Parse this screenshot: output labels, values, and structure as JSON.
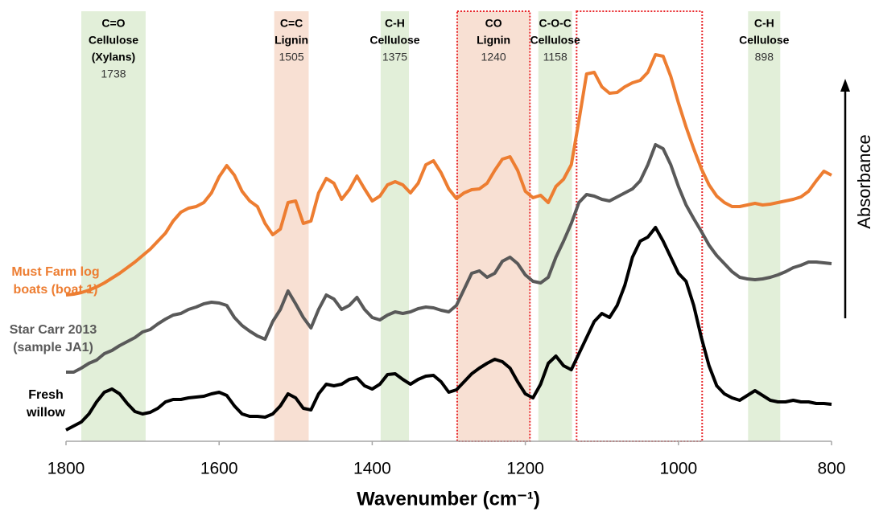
{
  "chart_data": {
    "type": "line",
    "xlabel": "Wavenumber (cm⁻¹)",
    "ylabel": "Absorbance",
    "xlim": [
      1800,
      800
    ],
    "xticks": [
      1800,
      1600,
      1400,
      1200,
      1000,
      800
    ],
    "ylim": [
      0,
      535
    ],
    "x": [
      1800,
      1790,
      1780,
      1770,
      1760,
      1750,
      1740,
      1730,
      1720,
      1710,
      1700,
      1690,
      1680,
      1670,
      1660,
      1650,
      1640,
      1630,
      1620,
      1610,
      1600,
      1590,
      1580,
      1570,
      1560,
      1550,
      1540,
      1530,
      1520,
      1510,
      1500,
      1490,
      1480,
      1470,
      1460,
      1450,
      1440,
      1430,
      1420,
      1410,
      1400,
      1390,
      1380,
      1370,
      1360,
      1350,
      1340,
      1330,
      1320,
      1310,
      1300,
      1290,
      1280,
      1270,
      1260,
      1250,
      1240,
      1230,
      1220,
      1210,
      1200,
      1190,
      1180,
      1170,
      1160,
      1150,
      1140,
      1130,
      1120,
      1110,
      1100,
      1090,
      1080,
      1070,
      1060,
      1050,
      1040,
      1030,
      1020,
      1010,
      1000,
      990,
      980,
      970,
      960,
      950,
      940,
      930,
      920,
      910,
      900,
      890,
      880,
      870,
      860,
      850,
      840,
      830,
      820,
      810,
      800
    ],
    "series": [
      {
        "name": "Must Farm log boats (boat 1)",
        "color": "#ed7d31",
        "values": [
          182,
          183,
          185,
          188,
          192,
          197,
          203,
          209,
          216,
          223,
          231,
          239,
          249,
          259,
          274,
          285,
          290,
          292,
          297,
          309,
          329,
          343,
          331,
          311,
          299,
          292,
          271,
          257,
          264,
          297,
          299,
          271,
          274,
          309,
          327,
          321,
          301,
          313,
          330,
          314,
          299,
          305,
          319,
          323,
          319,
          309,
          321,
          344,
          349,
          334,
          314,
          302,
          309,
          313,
          314,
          321,
          337,
          351,
          354,
          337,
          311,
          303,
          306,
          297,
          317,
          326,
          344,
          399,
          457,
          459,
          441,
          433,
          434,
          441,
          446,
          449,
          459,
          481,
          479,
          454,
          421,
          391,
          364,
          339,
          319,
          305,
          297,
          292,
          292,
          294,
          296,
          294,
          295,
          297,
          299,
          301,
          304,
          311,
          324,
          336,
          331
        ]
      },
      {
        "name": "Star Carr 2013 (sample JA1)",
        "color": "#595959",
        "values": [
          86,
          86,
          91,
          97,
          101,
          109,
          113,
          119,
          124,
          129,
          136,
          139,
          146,
          152,
          157,
          159,
          164,
          167,
          171,
          173,
          172,
          169,
          154,
          144,
          137,
          131,
          127,
          149,
          164,
          187,
          171,
          154,
          141,
          164,
          182,
          177,
          164,
          169,
          179,
          164,
          154,
          151,
          157,
          161,
          159,
          161,
          165,
          167,
          166,
          163,
          161,
          169,
          189,
          209,
          212,
          204,
          209,
          224,
          229,
          221,
          207,
          199,
          197,
          204,
          229,
          249,
          271,
          297,
          307,
          305,
          301,
          299,
          304,
          309,
          314,
          324,
          344,
          369,
          364,
          344,
          317,
          294,
          277,
          261,
          244,
          231,
          221,
          211,
          204,
          202,
          201,
          202,
          204,
          207,
          211,
          216,
          219,
          223,
          223,
          222,
          221
        ]
      },
      {
        "name": "Fresh willow",
        "color": "#000000",
        "values": [
          14,
          19,
          24,
          34,
          49,
          61,
          65,
          59,
          47,
          37,
          34,
          36,
          41,
          49,
          52,
          52,
          54,
          55,
          56,
          59,
          61,
          57,
          44,
          34,
          31,
          31,
          30,
          34,
          44,
          59,
          54,
          41,
          39,
          59,
          71,
          69,
          71,
          77,
          79,
          69,
          65,
          71,
          83,
          84,
          77,
          71,
          77,
          81,
          82,
          74,
          61,
          64,
          74,
          84,
          91,
          97,
          102,
          99,
          91,
          74,
          59,
          54,
          71,
          97,
          106,
          94,
          89,
          109,
          129,
          149,
          159,
          154,
          169,
          194,
          229,
          249,
          254,
          266,
          249,
          229,
          209,
          199,
          169,
          129,
          94,
          69,
          59,
          54,
          51,
          57,
          63,
          57,
          51,
          49,
          49,
          51,
          49,
          49,
          47,
          47,
          46
        ]
      }
    ],
    "bands": [
      {
        "lines": [
          "C=O",
          "Cellulose",
          "(Xylans)"
        ],
        "wavenumber": 1738,
        "from": 1780,
        "to": 1696,
        "color": "#e2efd9"
      },
      {
        "lines": [
          "C=C",
          "Lignin"
        ],
        "wavenumber": 1505,
        "from": 1528,
        "to": 1483,
        "color": "#f8e0d3"
      },
      {
        "lines": [
          "C-H",
          "Cellulose"
        ],
        "wavenumber": 1375,
        "from": 1389,
        "to": 1352,
        "color": "#e2efd9"
      },
      {
        "lines": [
          "CO",
          "Lignin"
        ],
        "wavenumber": 1240,
        "from": 1289,
        "to": 1194,
        "color": "#f8e0d3",
        "outline": "#e8262a"
      },
      {
        "lines": [
          "C-O-C",
          "Cellulose"
        ],
        "wavenumber": 1158,
        "from": 1183,
        "to": 1139,
        "color": "#e2efd9"
      },
      {
        "from": 1133,
        "to": 969,
        "outline": "#e8262a"
      },
      {
        "lines": [
          "C-H",
          "Cellulose"
        ],
        "wavenumber": 898,
        "from": 909,
        "to": 867,
        "color": "#e2efd9"
      }
    ]
  }
}
